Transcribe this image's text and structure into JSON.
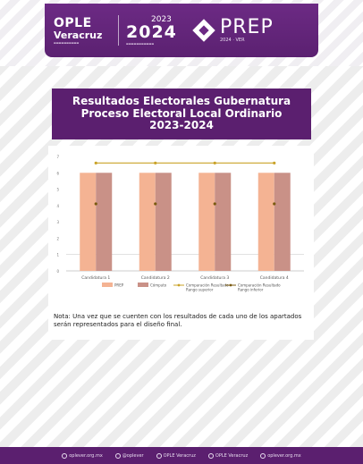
{
  "header": {
    "ople_top": "OPLE",
    "ople_name": "Veracruz",
    "year_small": "2023",
    "year_big": "2024",
    "prep_word": "PREP",
    "prep_sub": "2024 · VER"
  },
  "title": {
    "line1": "Resultados Electorales Gubernatura",
    "line2": "Proceso Electoral Local Ordinario",
    "line3": "2023-2024"
  },
  "chart_data": {
    "type": "bar",
    "categories": [
      "Candidatura 1",
      "Candidatura 2",
      "Candidatura 3",
      "Candidatura 4"
    ],
    "ylim": [
      0,
      7
    ],
    "yticks": [
      "0",
      "1",
      "2",
      "3",
      "4",
      "5",
      "6",
      "7"
    ],
    "series": [
      {
        "name": "PREP",
        "kind": "bar",
        "values": [
          6,
          6,
          6,
          6
        ],
        "color": "#f4b393"
      },
      {
        "name": "Cómputo",
        "kind": "bar",
        "values": [
          6,
          6,
          6,
          6
        ],
        "color": "#c99187"
      },
      {
        "name": "Comparación Resultado\nRango superior",
        "kind": "line",
        "values": [
          6.6,
          6.6,
          6.6,
          6.6
        ],
        "color": "#c9a227"
      },
      {
        "name": "Comparación Resultado\nRango inferior",
        "kind": "line",
        "values": [
          4.1,
          4.1,
          4.1,
          4.1
        ],
        "color": "#7a5a10"
      }
    ],
    "xlabel": "",
    "ylabel": "",
    "grid": true,
    "legend": "bottom"
  },
  "note": "Nota: Una vez que se cuenten con los resultados de cada uno de los apartados serán representados para el diseño final.",
  "footer": {
    "items": [
      "oplever.org.mx",
      "@oplever",
      "OPLE Veracruz",
      "OPLE Veracruz",
      "oplever.org.mx"
    ]
  },
  "colors": {
    "purple": "#5b1f6f",
    "banner": "#6c2a84"
  }
}
